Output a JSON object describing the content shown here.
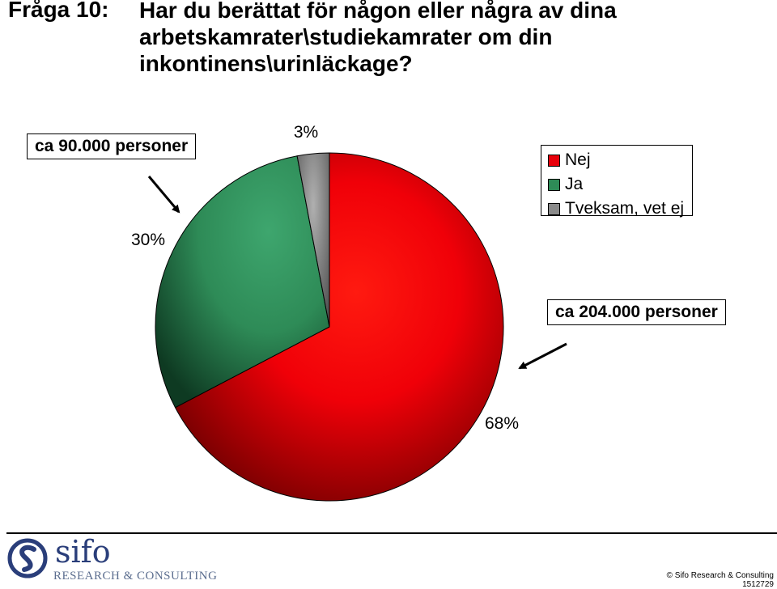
{
  "question": {
    "number": "Fråga 10:",
    "lines": [
      "Har du berättat för någon eller några av dina",
      "arbetskamrater\\studiekamrater om din",
      "inkontinens\\urinläckage?"
    ]
  },
  "chart_data": {
    "type": "pie",
    "title": "",
    "slices": [
      {
        "name": "Nej",
        "value": 68,
        "label": "68%",
        "color": "#e8000a"
      },
      {
        "name": "Ja",
        "value": 30,
        "label": "30%",
        "color": "#2e8b57"
      },
      {
        "name": "Tveksam, vet ej",
        "value": 3,
        "label": "3%",
        "color": "#8a8a8a"
      }
    ],
    "legend": {
      "position": "top-right"
    },
    "callouts": [
      {
        "text": "ca 90.000 personer",
        "refers_to": "Ja"
      },
      {
        "text": "ca 204.000 personer",
        "refers_to": "Nej"
      }
    ]
  },
  "footer": {
    "logo_word": "sifo",
    "logo_subtitle": "RESEARCH & CONSULTING",
    "copyright": "© Sifo Research & Consulting",
    "code": "1512729"
  }
}
